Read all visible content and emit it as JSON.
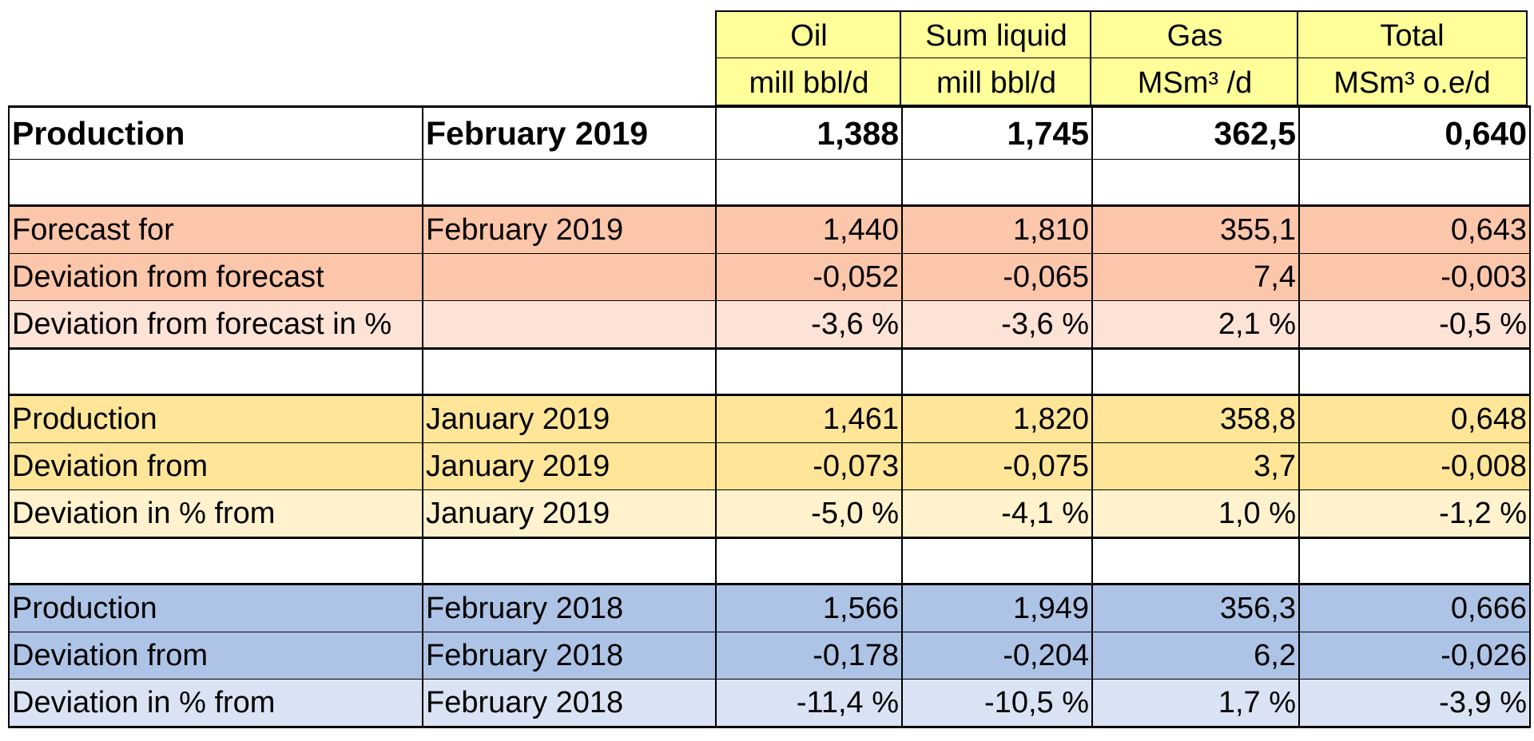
{
  "columns": [
    {
      "name": "Oil",
      "unit": "mill bbl/d"
    },
    {
      "name": "Sum liquid",
      "unit": "mill bbl/d"
    },
    {
      "name": "Gas",
      "unit": "MSm³ /d"
    },
    {
      "name": "Total",
      "unit": "MSm³ o.e/d"
    }
  ],
  "rows": {
    "production_feb2019": {
      "label": "Production",
      "period": "February 2019",
      "values": [
        "1,388",
        "1,745",
        "362,5",
        "0,640"
      ]
    },
    "forecast": {
      "label": "Forecast for",
      "period": "February 2019",
      "values": [
        "1,440",
        "1,810",
        "355,1",
        "0,643"
      ]
    },
    "deviation_forecast": {
      "label": "Deviation from forecast",
      "period": "",
      "values": [
        "-0,052",
        "-0,065",
        "7,4",
        "-0,003"
      ]
    },
    "deviation_forecast_pct": {
      "label": "Deviation from forecast in %",
      "period": "",
      "values": [
        "-3,6 %",
        "-3,6 %",
        "2,1 %",
        "-0,5 %"
      ]
    },
    "production_jan2019": {
      "label": "Production",
      "period": "January 2019",
      "values": [
        "1,461",
        "1,820",
        "358,8",
        "0,648"
      ]
    },
    "deviation_jan2019": {
      "label": "Deviation from",
      "period": "January 2019",
      "values": [
        "-0,073",
        "-0,075",
        "3,7",
        "-0,008"
      ]
    },
    "deviation_jan2019_pct": {
      "label": "Deviation  in % from",
      "period": "January 2019",
      "values": [
        "-5,0 %",
        "-4,1 %",
        "1,0 %",
        "-1,2 %"
      ]
    },
    "production_feb2018": {
      "label": "Production",
      "period": "February 2018",
      "values": [
        "1,566",
        "1,949",
        "356,3",
        "0,666"
      ]
    },
    "deviation_feb2018": {
      "label": "Deviation from",
      "period": "February 2018",
      "values": [
        "-0,178",
        "-0,204",
        "6,2",
        "-0,026"
      ]
    },
    "deviation_feb2018_pct": {
      "label": "Deviation  in % from",
      "period": "February 2018",
      "values": [
        "-11,4 %",
        "-10,5 %",
        "1,7 %",
        "-3,9 %"
      ]
    }
  },
  "colors": {
    "header": "#ffff99",
    "forecast": "#fcc6aa",
    "forecast_pct": "#fde2d6",
    "january": "#fee597",
    "january_pct": "#fff2cc",
    "february2018": "#aec4e6",
    "february2018_pct": "#dae3f3"
  }
}
